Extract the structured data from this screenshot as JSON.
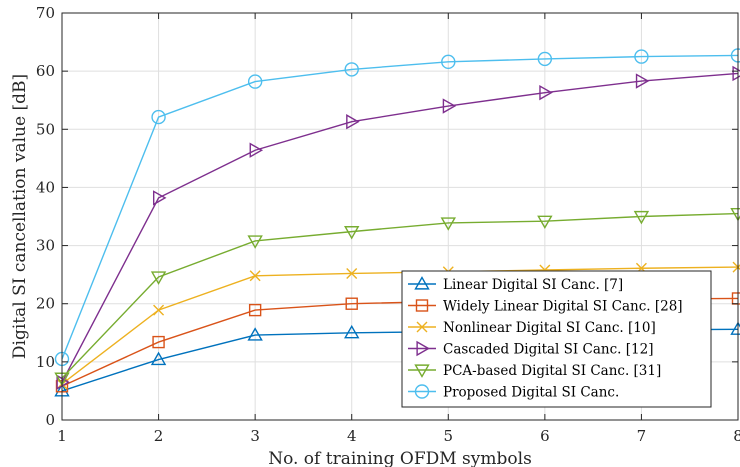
{
  "chart_data": {
    "type": "line",
    "title": "",
    "xlabel": "No. of training OFDM symbols",
    "ylabel": "Digital SI cancellation value [dB]",
    "xlim": [
      1,
      8
    ],
    "ylim": [
      0,
      70
    ],
    "xticks": [
      1,
      2,
      3,
      4,
      5,
      6,
      7,
      8
    ],
    "yticks": [
      0,
      10,
      20,
      30,
      40,
      50,
      60,
      70
    ],
    "grid": true,
    "legend_position": "bottom-right",
    "x": [
      1,
      2,
      3,
      4,
      5,
      6,
      7,
      8
    ],
    "series": [
      {
        "name": "Linear Digital SI Canc. [7]",
        "color": "#0072BD",
        "marker": "triangle-up",
        "values": [
          5.0,
          10.4,
          14.6,
          15.0,
          15.2,
          15.4,
          15.5,
          15.6
        ]
      },
      {
        "name": "Widely Linear Digital SI Canc. [28]",
        "color": "#D95319",
        "marker": "square",
        "values": [
          5.8,
          13.4,
          18.9,
          20.0,
          20.4,
          20.6,
          20.8,
          20.9
        ]
      },
      {
        "name": "Nonlinear Digital SI Canc. [10]",
        "color": "#EDB120",
        "marker": "x",
        "values": [
          6.2,
          18.9,
          24.8,
          25.2,
          25.5,
          25.8,
          26.1,
          26.3
        ]
      },
      {
        "name": "Cascaded Digital SI Canc. [12]",
        "color": "#7E2F8E",
        "marker": "triangle-right",
        "values": [
          6.5,
          38.2,
          46.4,
          51.3,
          54.0,
          56.3,
          58.3,
          59.6
        ]
      },
      {
        "name": "PCA-based Digital SI Canc. [31]",
        "color": "#77AC30",
        "marker": "triangle-down",
        "values": [
          7.2,
          24.6,
          30.8,
          32.4,
          33.9,
          34.2,
          35.0,
          35.5
        ]
      },
      {
        "name": "Proposed Digital SI Canc.",
        "color": "#4DBEEE",
        "marker": "circle",
        "values": [
          10.5,
          52.1,
          58.2,
          60.3,
          61.6,
          62.1,
          62.5,
          62.7
        ]
      }
    ]
  }
}
